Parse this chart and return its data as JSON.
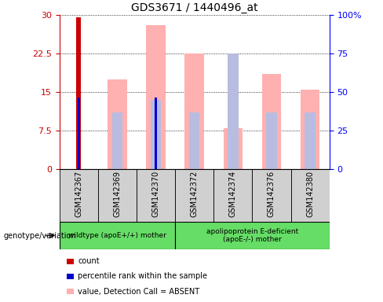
{
  "title": "GDS3671 / 1440496_at",
  "samples": [
    "GSM142367",
    "GSM142369",
    "GSM142370",
    "GSM142372",
    "GSM142374",
    "GSM142376",
    "GSM142380"
  ],
  "count_values": [
    29.5,
    0,
    0,
    0,
    0,
    0,
    0
  ],
  "percentile_rank": [
    14.0,
    0,
    14.0,
    0,
    0,
    0,
    0
  ],
  "value_absent": [
    0,
    17.5,
    28.0,
    22.5,
    8.0,
    18.5,
    15.5
  ],
  "rank_absent": [
    0,
    11.0,
    13.5,
    11.0,
    22.5,
    11.0,
    11.0
  ],
  "left_ylim": [
    0,
    30
  ],
  "right_ylim": [
    0,
    100
  ],
  "left_yticks": [
    0,
    7.5,
    15,
    22.5,
    30
  ],
  "right_yticks": [
    0,
    25,
    50,
    75,
    100
  ],
  "left_yticklabels": [
    "0",
    "7.5",
    "15",
    "22.5",
    "30"
  ],
  "right_yticklabels": [
    "0",
    "25",
    "50",
    "75",
    "100%"
  ],
  "count_color": "#cc0000",
  "rank_color": "#0000cc",
  "value_absent_color": "#ffb0b0",
  "rank_absent_color": "#b8bce0",
  "left_tick_color": "#cc0000",
  "right_tick_color": "#0000ff",
  "group1_label": "wildtype (apoE+/+) mother",
  "group1_count": 3,
  "group2_label": "apolipoprotein E-deficient\n(apoE-/-) mother",
  "group2_count": 4,
  "group_color": "#66dd66",
  "legend_labels": [
    "count",
    "percentile rank within the sample",
    "value, Detection Call = ABSENT",
    "rank, Detection Call = ABSENT"
  ],
  "legend_colors": [
    "#cc0000",
    "#0000cc",
    "#ffb0b0",
    "#b8bce0"
  ]
}
